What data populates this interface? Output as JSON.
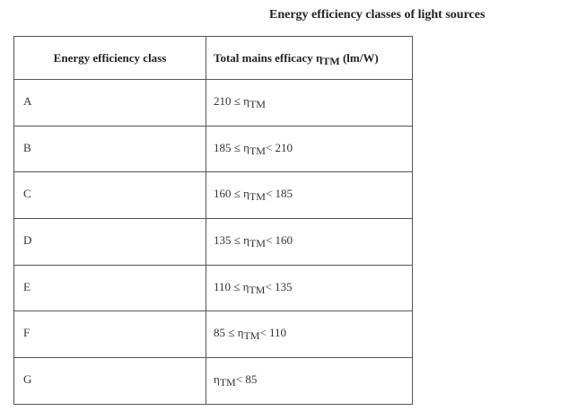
{
  "title": "Energy efficiency classes of light sources",
  "table": {
    "header": [
      [
        "Energy efficiency class"
      ],
      [
        "Total mains efficacy η",
        "TM",
        " (lm/W)"
      ]
    ],
    "rows": [
      [
        [
          "A"
        ],
        [
          "210 ≤ η",
          "TM"
        ]
      ],
      [
        [
          "B"
        ],
        [
          "185 ≤ η",
          "TM",
          "< 210"
        ]
      ],
      [
        [
          "C"
        ],
        [
          "160 ≤ η",
          "TM",
          "< 185"
        ]
      ],
      [
        [
          "D"
        ],
        [
          "135 ≤ η",
          "TM",
          "< 160"
        ]
      ],
      [
        [
          "E"
        ],
        [
          "110 ≤ η",
          "TM",
          "< 135"
        ]
      ],
      [
        [
          "F"
        ],
        [
          "85 ≤ η",
          "TM",
          "< 110"
        ]
      ],
      [
        [
          "G"
        ],
        [
          "η",
          "TM",
          "< 85"
        ]
      ]
    ]
  }
}
